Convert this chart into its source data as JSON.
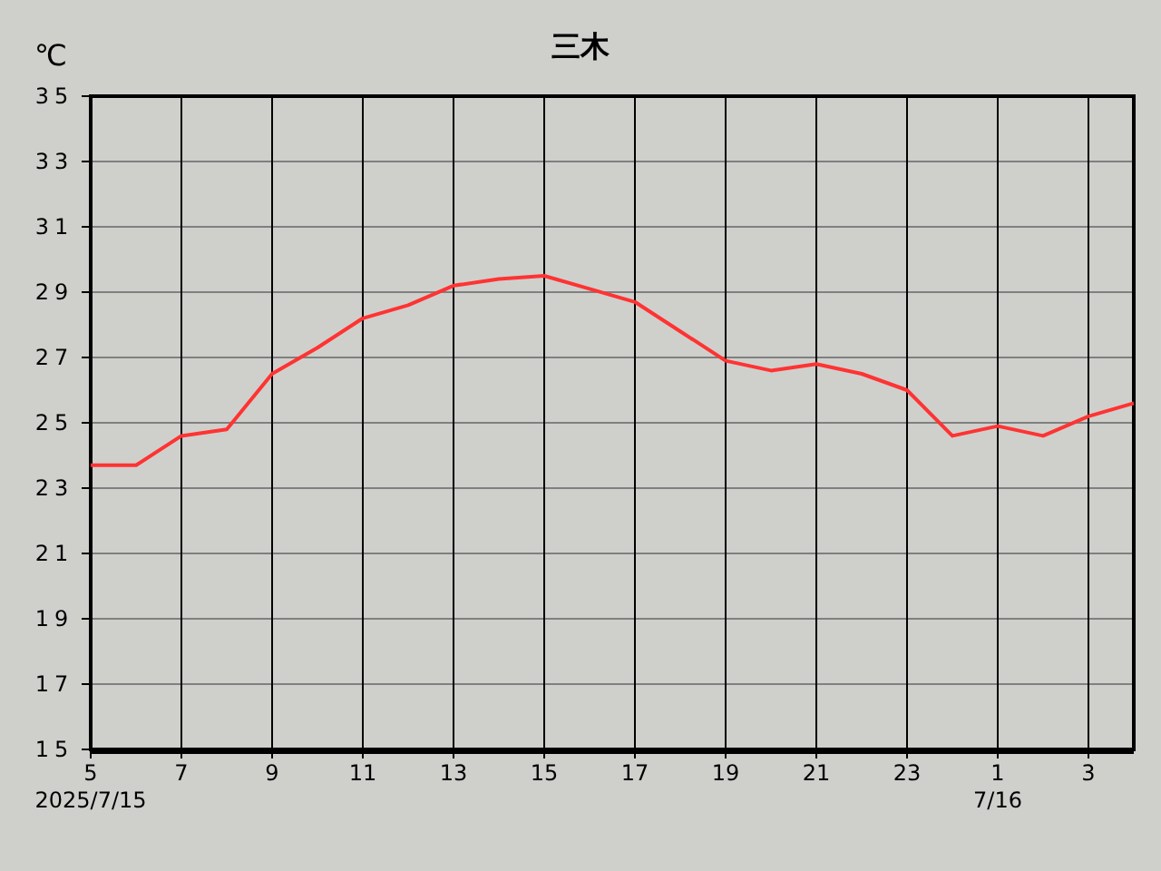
{
  "chart_data": {
    "type": "line",
    "title": "三木",
    "ylabel": "℃",
    "x": [
      "2025-07-15T05:00",
      "2025-07-15T06:00",
      "2025-07-15T07:00",
      "2025-07-15T08:00",
      "2025-07-15T09:00",
      "2025-07-15T10:00",
      "2025-07-15T11:00",
      "2025-07-15T12:00",
      "2025-07-15T13:00",
      "2025-07-15T14:00",
      "2025-07-15T15:00",
      "2025-07-15T16:00",
      "2025-07-15T17:00",
      "2025-07-15T18:00",
      "2025-07-15T19:00",
      "2025-07-15T20:00",
      "2025-07-15T21:00",
      "2025-07-15T22:00",
      "2025-07-15T23:00",
      "2025-07-16T00:00",
      "2025-07-16T01:00",
      "2025-07-16T02:00",
      "2025-07-16T03:00",
      "2025-07-16T04:00"
    ],
    "series": [
      {
        "color": "#ff3333",
        "values": [
          23.7,
          23.7,
          24.6,
          24.8,
          26.5,
          27.3,
          28.2,
          28.6,
          29.2,
          29.4,
          29.5,
          29.1,
          28.7,
          27.8,
          26.9,
          26.6,
          26.8,
          26.5,
          26.0,
          24.6,
          24.9,
          24.6,
          25.2,
          25.6
        ]
      }
    ],
    "xlim": [
      "2025-07-15T05:00",
      "2025-07-16T04:00"
    ],
    "ylim": [
      15,
      35
    ],
    "xticks": [
      {
        "value": "2025-07-15T05:00",
        "label": "5\n2025/7/15"
      },
      {
        "value": "2025-07-15T07:00",
        "label": "7"
      },
      {
        "value": "2025-07-15T09:00",
        "label": "9"
      },
      {
        "value": "2025-07-15T11:00",
        "label": "11"
      },
      {
        "value": "2025-07-15T13:00",
        "label": "13"
      },
      {
        "value": "2025-07-15T15:00",
        "label": "15"
      },
      {
        "value": "2025-07-15T17:00",
        "label": "17"
      },
      {
        "value": "2025-07-15T19:00",
        "label": "19"
      },
      {
        "value": "2025-07-15T21:00",
        "label": "21"
      },
      {
        "value": "2025-07-15T23:00",
        "label": "23"
      },
      {
        "value": "2025-07-16T01:00",
        "label": "1\n7/16"
      },
      {
        "value": "2025-07-16T03:00",
        "label": "3"
      }
    ],
    "yticks": [
      15,
      17,
      19,
      21,
      23,
      25,
      27,
      29,
      31,
      33,
      35
    ],
    "grid": true,
    "marker": "none",
    "line_style": "solid"
  }
}
